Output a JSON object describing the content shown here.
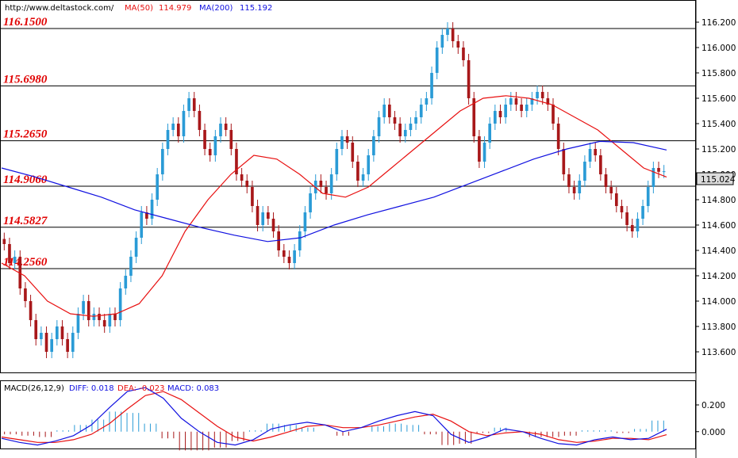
{
  "header": {
    "url": "http://www.deltastock.com/",
    "ma50_label": "MA(50)",
    "ma50_value": "114.979",
    "ma200_label": "MA(200)",
    "ma200_value": "115.192"
  },
  "macd_header": {
    "label": "MACD(26,12,9)",
    "diff": "DIFF: 0.018",
    "dea": "DEA: -0.023",
    "macd": "MACD: 0.083"
  },
  "colors": {
    "bull": "#2a9bd6",
    "bear": "#a8181a",
    "ma50": "#e81010",
    "ma200": "#1010e0",
    "level_text": "#e00000",
    "diff_line": "#1010e0",
    "dea_line": "#e81010"
  },
  "price_tag": "115.024",
  "chart_data": [
    {
      "type": "candlestick",
      "ylim": [
        113.45,
        116.35
      ],
      "y_ticks": [
        "116.200",
        "116.000",
        "115.800",
        "115.600",
        "115.400",
        "115.200",
        "115.000",
        "114.800",
        "114.600",
        "114.400",
        "114.200",
        "114.000",
        "113.800",
        "113.600"
      ],
      "levels": [
        {
          "label": "116.1500",
          "value": 116.15
        },
        {
          "label": "115.6980",
          "value": 115.698
        },
        {
          "label": "115.2650",
          "value": 115.265
        },
        {
          "label": "114.9060",
          "value": 114.906
        },
        {
          "label": "114.5827",
          "value": 114.5827
        },
        {
          "label": "114.2560",
          "value": 114.256
        }
      ],
      "candles_close": [
        114.45,
        114.3,
        114.35,
        114.1,
        114.0,
        113.85,
        113.7,
        113.75,
        113.6,
        113.7,
        113.8,
        113.7,
        113.6,
        113.75,
        113.9,
        114.0,
        113.85,
        113.9,
        113.85,
        113.8,
        113.9,
        113.85,
        114.1,
        114.2,
        114.35,
        114.5,
        114.7,
        114.65,
        114.8,
        115.0,
        115.2,
        115.35,
        115.4,
        115.3,
        115.5,
        115.6,
        115.5,
        115.35,
        115.2,
        115.15,
        115.3,
        115.4,
        115.35,
        115.2,
        115.0,
        114.95,
        114.9,
        114.75,
        114.6,
        114.7,
        114.65,
        114.55,
        114.4,
        114.35,
        114.3,
        114.4,
        114.55,
        114.7,
        114.85,
        114.95,
        114.9,
        114.85,
        115.0,
        115.2,
        115.3,
        115.25,
        115.1,
        114.95,
        115.0,
        115.15,
        115.3,
        115.45,
        115.55,
        115.45,
        115.4,
        115.3,
        115.35,
        115.4,
        115.45,
        115.55,
        115.6,
        115.8,
        116.0,
        116.1,
        116.15,
        116.05,
        116.0,
        115.9,
        115.6,
        115.3,
        115.1,
        115.25,
        115.4,
        115.5,
        115.45,
        115.55,
        115.6,
        115.55,
        115.5,
        115.55,
        115.6,
        115.65,
        115.6,
        115.55,
        115.4,
        115.2,
        115.0,
        114.9,
        114.85,
        114.95,
        115.1,
        115.2,
        115.15,
        115.0,
        114.9,
        114.85,
        114.75,
        114.7,
        114.6,
        114.55,
        114.65,
        114.75,
        114.9,
        115.05,
        115.02,
        115.024
      ],
      "ma50": [
        114.3,
        114.2,
        114.0,
        113.9,
        113.88,
        113.9,
        113.98,
        114.2,
        114.55,
        114.8,
        115.0,
        115.15,
        115.12,
        115.0,
        114.85,
        114.82,
        114.9,
        115.05,
        115.2,
        115.35,
        115.5,
        115.6,
        115.62,
        115.6,
        115.55,
        115.45,
        115.35,
        115.2,
        115.05,
        114.979
      ],
      "ma200": [
        115.05,
        114.98,
        114.9,
        114.82,
        114.72,
        114.65,
        114.58,
        114.52,
        114.47,
        114.5,
        114.6,
        114.68,
        114.75,
        114.82,
        114.92,
        115.02,
        115.12,
        115.2,
        115.26,
        115.25,
        115.192
      ],
      "series": [
        {
          "name": "MA(50)",
          "value": 114.979
        },
        {
          "name": "MA(200)",
          "value": 115.192
        }
      ]
    },
    {
      "type": "line",
      "title": "MACD(26,12,9)",
      "ylim": [
        -0.12,
        0.36
      ],
      "y_ticks": [
        "0.200",
        "0.000"
      ],
      "series": [
        {
          "name": "DIFF",
          "last": 0.018,
          "values": [
            -0.05,
            -0.08,
            -0.1,
            -0.07,
            -0.03,
            0.05,
            0.18,
            0.3,
            0.33,
            0.25,
            0.1,
            0.0,
            -0.08,
            -0.1,
            -0.06,
            0.02,
            0.05,
            0.07,
            0.05,
            0.0,
            0.03,
            0.08,
            0.12,
            0.15,
            0.12,
            -0.02,
            -0.08,
            -0.04,
            0.02,
            0.0,
            -0.05,
            -0.09,
            -0.1,
            -0.06,
            -0.04,
            -0.06,
            -0.05,
            0.018
          ]
        },
        {
          "name": "DEA",
          "last": -0.023,
          "values": [
            -0.04,
            -0.06,
            -0.08,
            -0.08,
            -0.06,
            -0.02,
            0.06,
            0.17,
            0.27,
            0.3,
            0.24,
            0.14,
            0.04,
            -0.04,
            -0.07,
            -0.04,
            0.0,
            0.04,
            0.05,
            0.03,
            0.03,
            0.05,
            0.08,
            0.11,
            0.13,
            0.08,
            0.0,
            -0.03,
            -0.01,
            0.0,
            -0.02,
            -0.06,
            -0.08,
            -0.07,
            -0.05,
            -0.05,
            -0.06,
            -0.023
          ]
        },
        {
          "name": "MACD",
          "last": 0.083,
          "values": [
            -0.02,
            -0.03,
            -0.04,
            0.01,
            0.05,
            0.09,
            0.15,
            0.14,
            0.06,
            -0.05,
            -0.14,
            -0.14,
            -0.12,
            -0.07,
            0.01,
            0.06,
            0.05,
            0.03,
            0.0,
            -0.03,
            0.0,
            0.04,
            0.06,
            0.05,
            -0.02,
            -0.1,
            -0.09,
            -0.01,
            0.03,
            0.0,
            -0.04,
            -0.04,
            -0.03,
            0.01,
            0.01,
            -0.01,
            0.02,
            0.083
          ]
        }
      ]
    }
  ]
}
